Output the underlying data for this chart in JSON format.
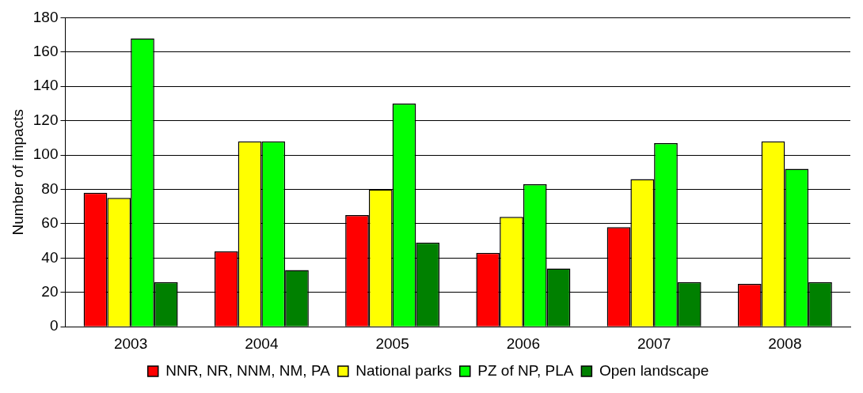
{
  "chart_data": {
    "type": "bar",
    "ylabel": "Number of impacts",
    "categories": [
      "2003",
      "2004",
      "2005",
      "2006",
      "2007",
      "2008"
    ],
    "series": [
      {
        "name": "NNR, NR, NNM, NM, PA",
        "color": "#ff0000",
        "values": [
          78,
          44,
          65,
          43,
          58,
          25
        ]
      },
      {
        "name": "National parks",
        "color": "#ffff00",
        "values": [
          75,
          108,
          80,
          64,
          86,
          108
        ]
      },
      {
        "name": "PZ of NP, PLA",
        "color": "#00ff00",
        "values": [
          168,
          108,
          130,
          83,
          107,
          92
        ]
      },
      {
        "name": "Open landscape",
        "color": "#008000",
        "values": [
          26,
          33,
          49,
          34,
          26,
          26
        ]
      }
    ],
    "ylim": [
      0,
      180
    ],
    "yticks": [
      0,
      20,
      40,
      60,
      80,
      100,
      120,
      140,
      160,
      180
    ],
    "grid": "y",
    "legend": "bottom"
  }
}
